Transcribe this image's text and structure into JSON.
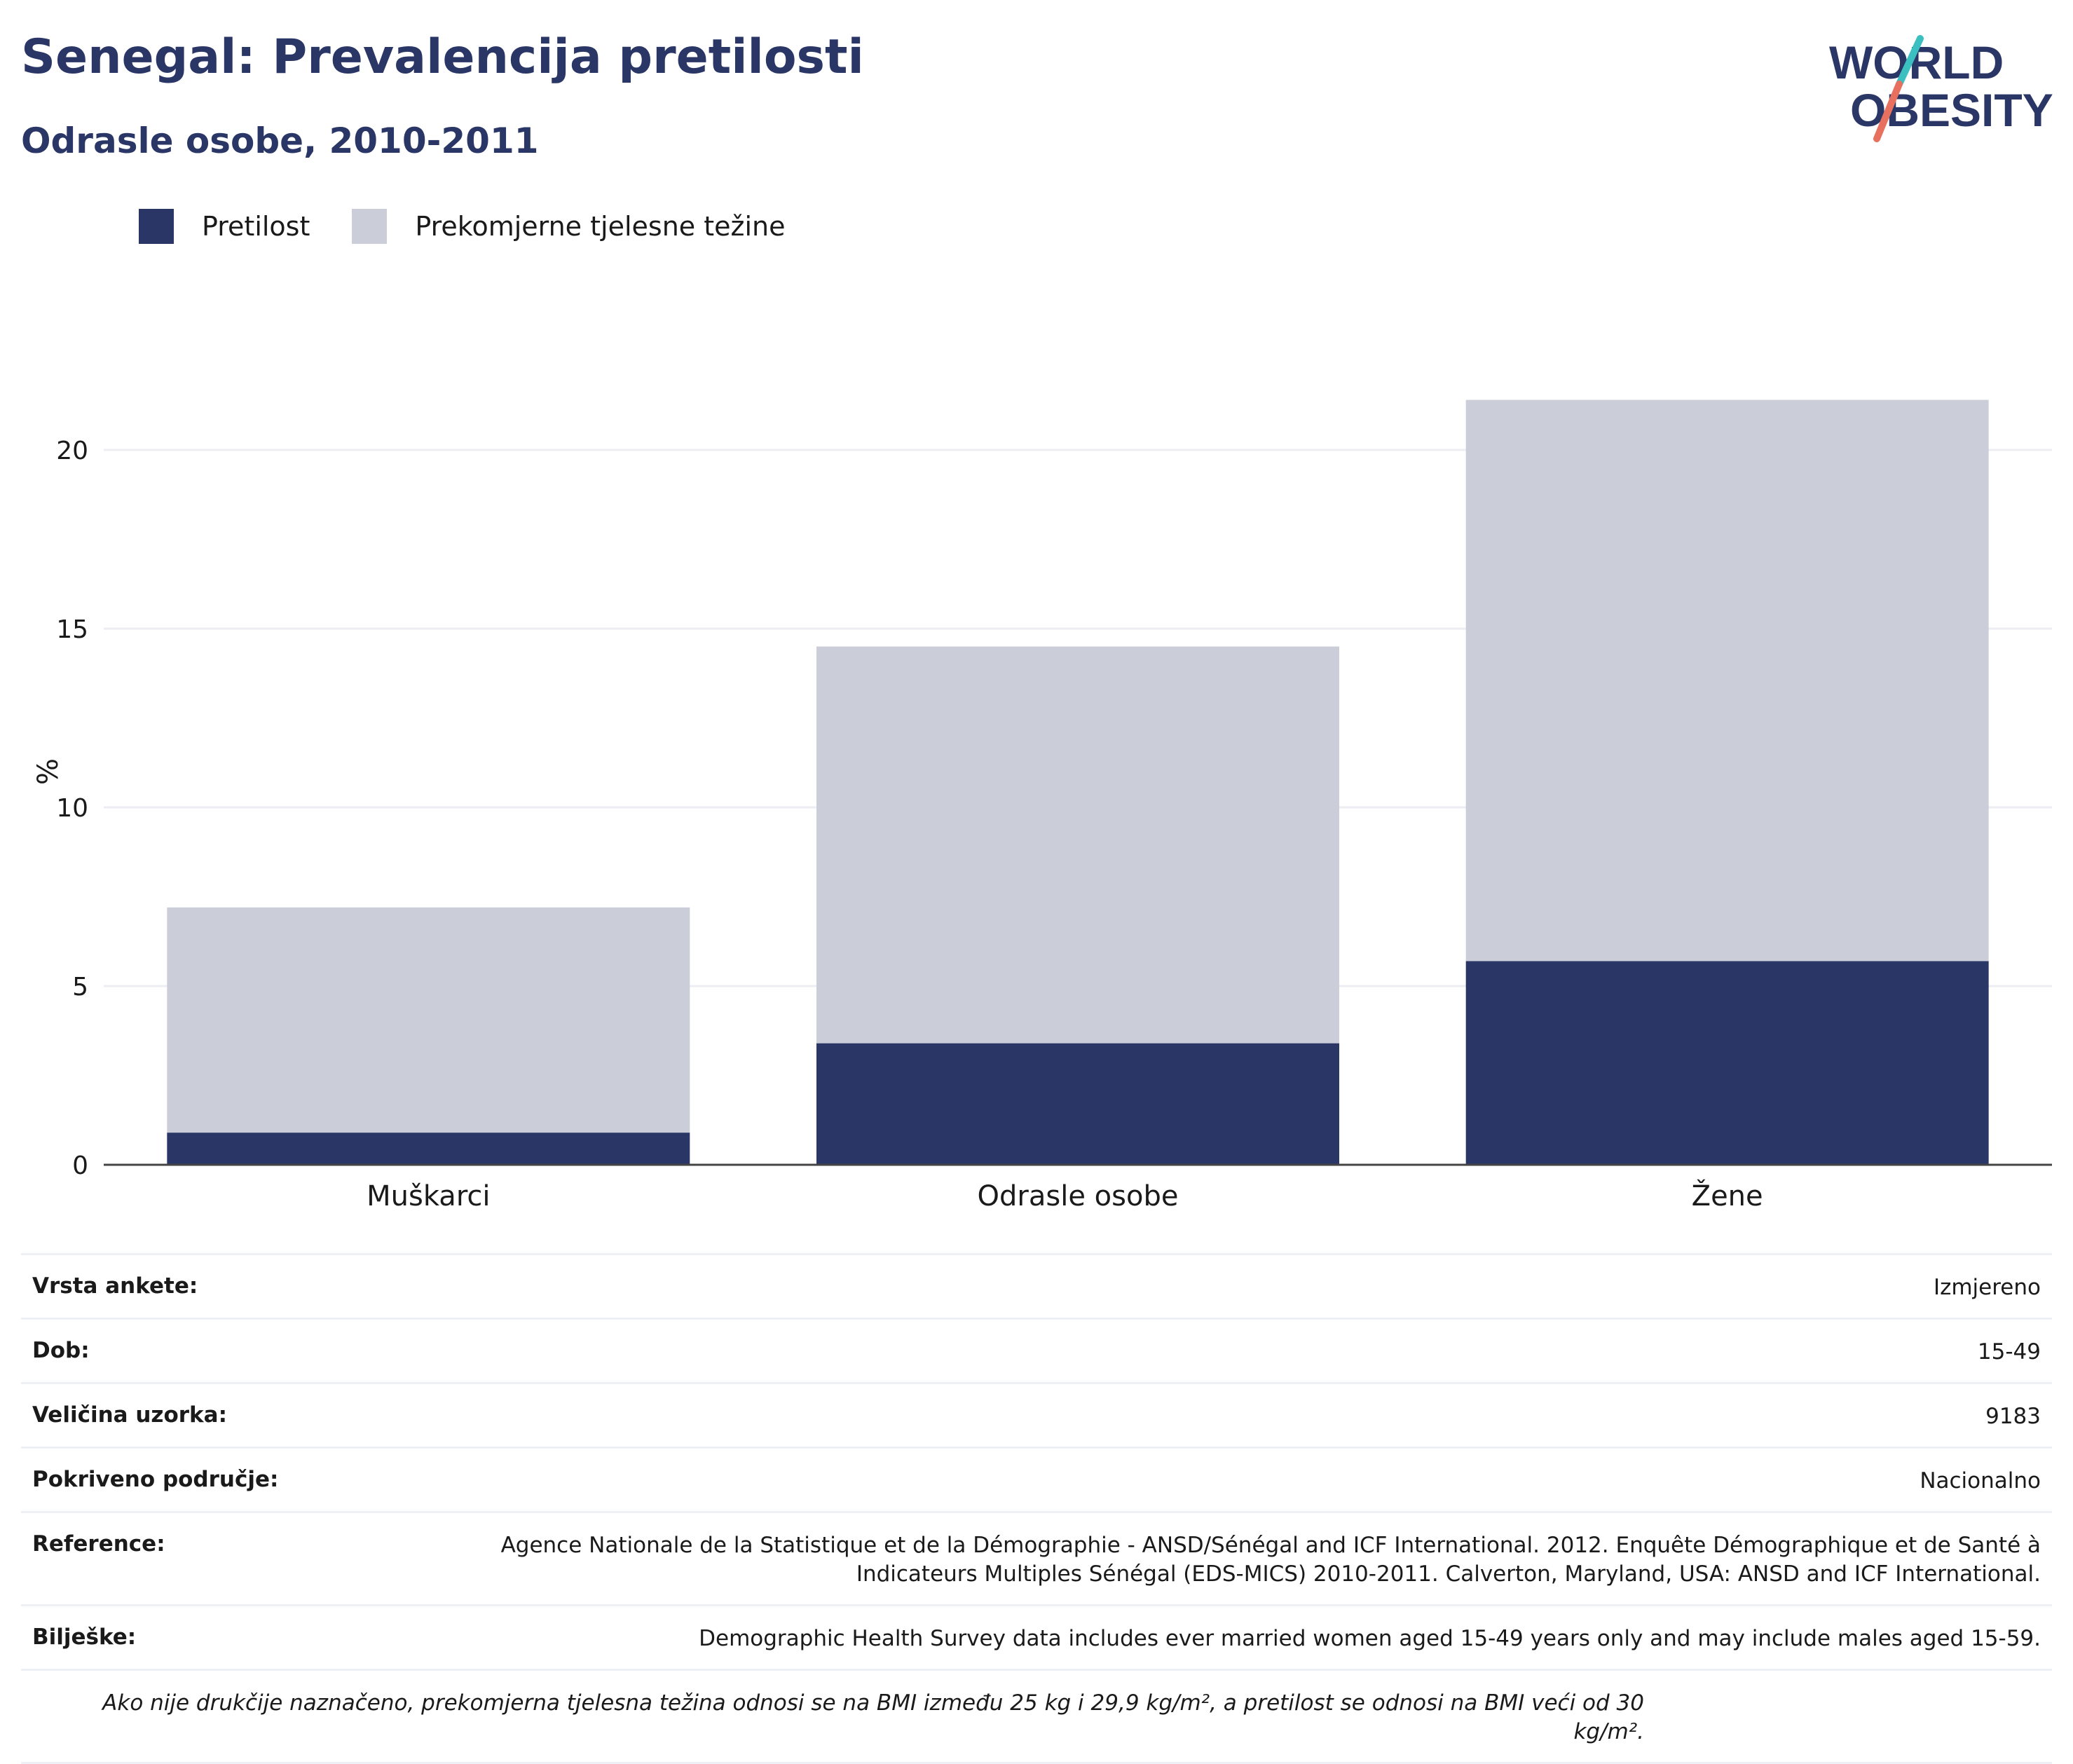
{
  "header": {
    "title": "Senegal: Prevalencija pretilosti",
    "subtitle": "Odrasle osobe, 2010-2011",
    "logo_line1": "WORLD",
    "logo_line2": "OBESITY"
  },
  "colors": {
    "obesity": "#2a3666",
    "overweight": "#cbcdd8",
    "grid": "#eceef3",
    "axis": "#444444",
    "logo_text": "#2a3666",
    "logo_teal": "#3bbfc1",
    "logo_coral": "#e8705f"
  },
  "legend": {
    "items": [
      {
        "label": "Pretilost",
        "color": "#2a3666"
      },
      {
        "label": "Prekomjerne tjelesne težine",
        "color": "#cbcdd8"
      }
    ]
  },
  "chart_data": {
    "type": "bar",
    "stacked": true,
    "categories": [
      "Muškarci",
      "Odrasle osobe",
      "Žene"
    ],
    "series": [
      {
        "name": "Pretilost",
        "values": [
          0.9,
          3.4,
          5.7
        ]
      },
      {
        "name": "Prekomjerne tjelesne težine",
        "values": [
          6.3,
          11.1,
          15.7
        ]
      }
    ],
    "ylabel": "%",
    "ylim": [
      0,
      22
    ],
    "yticks": [
      0,
      5,
      10,
      15,
      20
    ],
    "grid": true,
    "legend_position": "top-left"
  },
  "info": {
    "rows": [
      {
        "label": "Vrsta ankete:",
        "value": "Izmjereno"
      },
      {
        "label": "Dob:",
        "value": "15-49"
      },
      {
        "label": "Veličina uzorka:",
        "value": "9183"
      },
      {
        "label": "Pokriveno područje:",
        "value": "Nacionalno"
      },
      {
        "label": "Reference:",
        "value": "Agence Nationale de la Statistique et de la Démographie - ANSD/Sénégal and ICF International. 2012. Enquête Démographique et de Santé à Indicateurs Multiples Sénégal (EDS-MICS) 2010-2011. Calverton, Maryland, USA: ANSD and ICF International."
      },
      {
        "label": "Bilješke:",
        "value": "Demographic Health Survey data includes ever married women aged 15-49 years only and may include males aged 15-59."
      }
    ],
    "footnote": "Ako nije drukčije naznačeno, prekomjerna tjelesna težina odnosi se na BMI između 25 kg i 29,9 kg/m², a pretilost se odnosi na BMI veći od 30 kg/m²."
  }
}
